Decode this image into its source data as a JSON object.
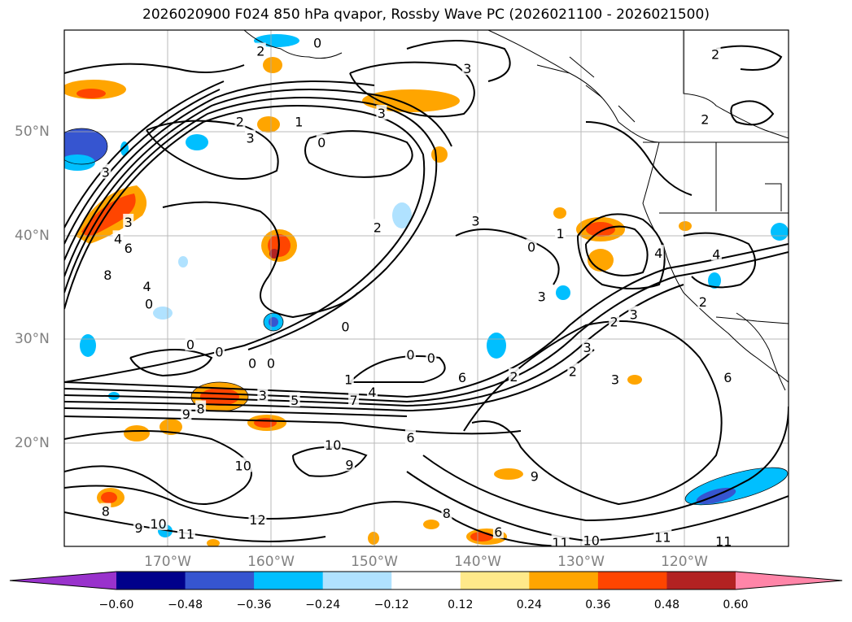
{
  "title": "2026020900 F024 850 hPa qvapor, Rossby Wave PC (2026021100 - 2026021500)",
  "lat_labels": [
    "50°N",
    "40°N",
    "30°N",
    "20°N"
  ],
  "lon_labels": [
    "170°W",
    "160°W",
    "150°W",
    "140°W",
    "130°W",
    "120°W"
  ],
  "colorbar": {
    "labels": [
      "−0.60",
      "−0.48",
      "−0.36",
      "−0.24",
      "−0.12",
      "0.12",
      "0.24",
      "0.36",
      "0.48",
      "0.60"
    ],
    "colors": [
      "#9932cc",
      "#00008b",
      "#3655d0",
      "#00bfff",
      "#b0e2ff",
      "#ffffff",
      "#ffe98a",
      "#ffa500",
      "#ff4500",
      "#b22222",
      "#ff85a8"
    ]
  },
  "contour_labels": [
    {
      "t": "0",
      "lon": -155.5,
      "lat": 58.6
    },
    {
      "t": "2",
      "lon": -161,
      "lat": 57.8
    },
    {
      "t": "3",
      "lon": -141,
      "lat": 56.1
    },
    {
      "t": "2",
      "lon": -117,
      "lat": 57.5
    },
    {
      "t": "2",
      "lon": -118,
      "lat": 51.2
    },
    {
      "t": "3",
      "lon": -149.3,
      "lat": 51.8
    },
    {
      "t": "1",
      "lon": -157.3,
      "lat": 51.0
    },
    {
      "t": "2",
      "lon": -163,
      "lat": 51.0
    },
    {
      "t": "3",
      "lon": -162,
      "lat": 49.4
    },
    {
      "t": "0",
      "lon": -155.1,
      "lat": 49.0
    },
    {
      "t": "3",
      "lon": -176,
      "lat": 46.1
    },
    {
      "t": "3",
      "lon": -173.8,
      "lat": 41.3
    },
    {
      "t": "4",
      "lon": -174.8,
      "lat": 39.7
    },
    {
      "t": "6",
      "lon": -173.8,
      "lat": 38.8
    },
    {
      "t": "8",
      "lon": -175.8,
      "lat": 36.2
    },
    {
      "t": "4",
      "lon": -172,
      "lat": 35.1
    },
    {
      "t": "0",
      "lon": -171.8,
      "lat": 33.4
    },
    {
      "t": "2",
      "lon": -149.7,
      "lat": 40.8
    },
    {
      "t": "3",
      "lon": -140.2,
      "lat": 41.4
    },
    {
      "t": "0",
      "lon": -134.8,
      "lat": 38.9
    },
    {
      "t": "1",
      "lon": -132,
      "lat": 40.2
    },
    {
      "t": "4",
      "lon": -122.5,
      "lat": 38.3
    },
    {
      "t": "4",
      "lon": -116.9,
      "lat": 38.2
    },
    {
      "t": "2",
      "lon": -118.2,
      "lat": 33.6
    },
    {
      "t": "3",
      "lon": -133.8,
      "lat": 34.1
    },
    {
      "t": "0",
      "lon": -152.8,
      "lat": 31.2
    },
    {
      "t": "0",
      "lon": -167.8,
      "lat": 29.5
    },
    {
      "t": "0",
      "lon": -165,
      "lat": 28.8
    },
    {
      "t": "0",
      "lon": -161.8,
      "lat": 27.7
    },
    {
      "t": "0",
      "lon": -160,
      "lat": 27.7
    },
    {
      "t": "0",
      "lon": -146.5,
      "lat": 28.5
    },
    {
      "t": "0",
      "lon": -144.5,
      "lat": 28.2
    },
    {
      "t": "1",
      "lon": -152.5,
      "lat": 26.1
    },
    {
      "t": "9",
      "lon": -168.2,
      "lat": 22.8
    },
    {
      "t": "8",
      "lon": -166.8,
      "lat": 23.3
    },
    {
      "t": "3",
      "lon": -160.8,
      "lat": 24.6
    },
    {
      "t": "5",
      "lon": -157.7,
      "lat": 24.1
    },
    {
      "t": "4",
      "lon": -150.2,
      "lat": 24.9
    },
    {
      "t": "7",
      "lon": -152,
      "lat": 24.1
    },
    {
      "t": "6",
      "lon": -141.5,
      "lat": 26.3
    },
    {
      "t": "2",
      "lon": -136.5,
      "lat": 26.4
    },
    {
      "t": "2",
      "lon": -130.8,
      "lat": 26.9
    },
    {
      "t": "3",
      "lon": -129.4,
      "lat": 29.2
    },
    {
      "t": "2",
      "lon": -126.8,
      "lat": 31.7
    },
    {
      "t": "3",
      "lon": -126.7,
      "lat": 26.1
    },
    {
      "t": "3",
      "lon": -124.9,
      "lat": 32.4
    },
    {
      "t": "6",
      "lon": -115.8,
      "lat": 26.3
    },
    {
      "t": "6",
      "lon": -146.5,
      "lat": 20.5
    },
    {
      "t": "10",
      "lon": -154,
      "lat": 19.8
    },
    {
      "t": "9",
      "lon": -152.4,
      "lat": 17.9
    },
    {
      "t": "10",
      "lon": -162.7,
      "lat": 17.8
    },
    {
      "t": "9",
      "lon": -134.5,
      "lat": 16.8
    },
    {
      "t": "8",
      "lon": -143,
      "lat": 13.2
    },
    {
      "t": "8",
      "lon": -176,
      "lat": 13.4
    },
    {
      "t": "9",
      "lon": -172.8,
      "lat": 11.8
    },
    {
      "t": "10",
      "lon": -170.9,
      "lat": 12.2
    },
    {
      "t": "11",
      "lon": -168.2,
      "lat": 11.2
    },
    {
      "t": "12",
      "lon": -161.3,
      "lat": 12.6
    },
    {
      "t": "6",
      "lon": -138,
      "lat": 11.4
    },
    {
      "t": "11",
      "lon": -132,
      "lat": 10.4
    },
    {
      "t": "10",
      "lon": -129,
      "lat": 10.6
    },
    {
      "t": "11",
      "lon": -122.1,
      "lat": 10.9
    },
    {
      "t": "11",
      "lon": -116.2,
      "lat": 10.5
    }
  ]
}
